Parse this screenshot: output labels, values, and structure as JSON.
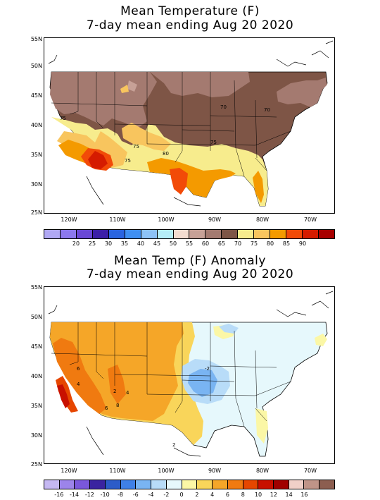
{
  "map1": {
    "title_line1": "Mean Temperature (F)",
    "title_line2": "7-day mean ending Aug 20 2020",
    "lat_labels": [
      "55N",
      "50N",
      "45N",
      "40N",
      "35N",
      "30N",
      "25N"
    ],
    "lon_labels": [
      "120W",
      "110W",
      "100W",
      "90W",
      "80W",
      "70W"
    ],
    "contour_labels": [
      "75",
      "70",
      "70",
      "75",
      "80",
      "75",
      "75"
    ],
    "legend": {
      "colors": [
        "#b0a8f4",
        "#8c78ee",
        "#6a48d6",
        "#3c1fa8",
        "#2a64e0",
        "#3f8ff2",
        "#8dc3f7",
        "#b5eef8",
        "#f3dcd0",
        "#c7a197",
        "#a47a70",
        "#7e5546",
        "#f7ec8d",
        "#f8c55e",
        "#f49a00",
        "#f24a08",
        "#d51b00",
        "#a80000"
      ],
      "labels": [
        "20",
        "25",
        "30",
        "35",
        "40",
        "45",
        "50",
        "55",
        "60",
        "65",
        "70",
        "75",
        "80",
        "85",
        "90"
      ]
    }
  },
  "map2": {
    "title_line1": "Mean Temp (F) Anomaly",
    "title_line2": "7-day mean ending Aug 20 2020",
    "lat_labels": [
      "55N",
      "50N",
      "45N",
      "40N",
      "35N",
      "30N",
      "25N"
    ],
    "lon_labels": [
      "120W",
      "110W",
      "100W",
      "90W",
      "80W",
      "70W"
    ],
    "contour_labels": [
      "6",
      "4",
      "2",
      "-2",
      "4",
      "6",
      "8",
      "2"
    ],
    "legend": {
      "colors": [
        "#c5b8f2",
        "#9c84ea",
        "#7a58dc",
        "#3a24a0",
        "#2c5cc8",
        "#3f80e6",
        "#79b4f2",
        "#b8dcf8",
        "#e6f8fc",
        "#fbf7a6",
        "#f9d55a",
        "#f5a628",
        "#f07a10",
        "#e64600",
        "#c81000",
        "#a00000",
        "#f0d0c8",
        "#bf9488",
        "#8c5e50"
      ],
      "labels": [
        "-16",
        "-14",
        "-12",
        "-10",
        "-8",
        "-6",
        "-4",
        "-2",
        "0",
        "2",
        "4",
        "6",
        "8",
        "10",
        "12",
        "14",
        "16"
      ]
    }
  }
}
